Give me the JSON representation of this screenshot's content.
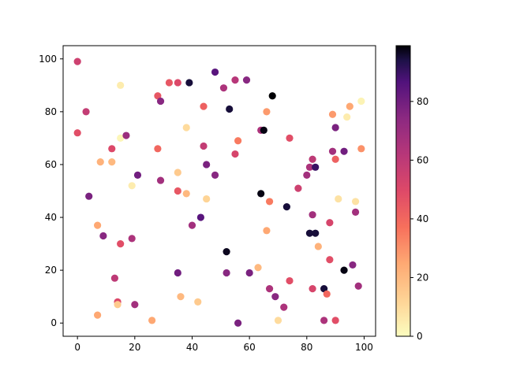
{
  "chart_data": {
    "type": "scatter",
    "title": "",
    "xlabel": "",
    "ylabel": "",
    "xlim": [
      -5,
      104
    ],
    "ylim": [
      -5,
      105
    ],
    "x_ticks": [
      0,
      20,
      40,
      60,
      80,
      100
    ],
    "y_ticks": [
      0,
      20,
      40,
      60,
      80,
      100
    ],
    "grid": false,
    "colormap": "magma_r",
    "colorbar": {
      "min": 0,
      "max": 99,
      "ticks": [
        0,
        20,
        40,
        60,
        80
      ]
    },
    "points": [
      {
        "x": 0,
        "y": 99,
        "c": 55
      },
      {
        "x": 0,
        "y": 72,
        "c": 48
      },
      {
        "x": 3,
        "y": 80,
        "c": 58
      },
      {
        "x": 4,
        "y": 48,
        "c": 78
      },
      {
        "x": 7,
        "y": 37,
        "c": 25
      },
      {
        "x": 7,
        "y": 3,
        "c": 25
      },
      {
        "x": 8,
        "y": 61,
        "c": 22
      },
      {
        "x": 9,
        "y": 33,
        "c": 75
      },
      {
        "x": 12,
        "y": 66,
        "c": 50
      },
      {
        "x": 12,
        "y": 61,
        "c": 20
      },
      {
        "x": 13,
        "y": 17,
        "c": 60
      },
      {
        "x": 14,
        "y": 8,
        "c": 50
      },
      {
        "x": 14,
        "y": 7,
        "c": 15
      },
      {
        "x": 15,
        "y": 90,
        "c": 5
      },
      {
        "x": 15,
        "y": 70,
        "c": 2
      },
      {
        "x": 15,
        "y": 30,
        "c": 48
      },
      {
        "x": 17,
        "y": 71,
        "c": 70
      },
      {
        "x": 19,
        "y": 52,
        "c": 5
      },
      {
        "x": 19,
        "y": 32,
        "c": 65
      },
      {
        "x": 20,
        "y": 7,
        "c": 68
      },
      {
        "x": 21,
        "y": 56,
        "c": 80
      },
      {
        "x": 26,
        "y": 1,
        "c": 25
      },
      {
        "x": 28,
        "y": 86,
        "c": 45
      },
      {
        "x": 28,
        "y": 66,
        "c": 40
      },
      {
        "x": 29,
        "y": 84,
        "c": 75
      },
      {
        "x": 29,
        "y": 54,
        "c": 68
      },
      {
        "x": 32,
        "y": 91,
        "c": 45
      },
      {
        "x": 35,
        "y": 91,
        "c": 50
      },
      {
        "x": 35,
        "y": 57,
        "c": 15
      },
      {
        "x": 35,
        "y": 50,
        "c": 45
      },
      {
        "x": 35,
        "y": 19,
        "c": 80
      },
      {
        "x": 36,
        "y": 10,
        "c": 20
      },
      {
        "x": 38,
        "y": 74,
        "c": 10
      },
      {
        "x": 38,
        "y": 49,
        "c": 20
      },
      {
        "x": 39,
        "y": 91,
        "c": 95
      },
      {
        "x": 40,
        "y": 37,
        "c": 68
      },
      {
        "x": 42,
        "y": 8,
        "c": 15
      },
      {
        "x": 43,
        "y": 40,
        "c": 85
      },
      {
        "x": 44,
        "y": 82,
        "c": 42
      },
      {
        "x": 44,
        "y": 67,
        "c": 58
      },
      {
        "x": 45,
        "y": 60,
        "c": 78
      },
      {
        "x": 45,
        "y": 47,
        "c": 12
      },
      {
        "x": 48,
        "y": 95,
        "c": 85
      },
      {
        "x": 48,
        "y": 56,
        "c": 75
      },
      {
        "x": 51,
        "y": 89,
        "c": 65
      },
      {
        "x": 52,
        "y": 27,
        "c": 97
      },
      {
        "x": 52,
        "y": 19,
        "c": 75
      },
      {
        "x": 53,
        "y": 81,
        "c": 95
      },
      {
        "x": 55,
        "y": 92,
        "c": 62
      },
      {
        "x": 55,
        "y": 64,
        "c": 52
      },
      {
        "x": 56,
        "y": 69,
        "c": 35
      },
      {
        "x": 56,
        "y": 0,
        "c": 78
      },
      {
        "x": 59,
        "y": 92,
        "c": 75
      },
      {
        "x": 60,
        "y": 19,
        "c": 78
      },
      {
        "x": 63,
        "y": 21,
        "c": 20
      },
      {
        "x": 64,
        "y": 73,
        "c": 65
      },
      {
        "x": 64,
        "y": 49,
        "c": 98
      },
      {
        "x": 65,
        "y": 73,
        "c": 98
      },
      {
        "x": 66,
        "y": 80,
        "c": 28
      },
      {
        "x": 66,
        "y": 35,
        "c": 25
      },
      {
        "x": 67,
        "y": 46,
        "c": 35
      },
      {
        "x": 67,
        "y": 13,
        "c": 65
      },
      {
        "x": 68,
        "y": 86,
        "c": 99
      },
      {
        "x": 69,
        "y": 10,
        "c": 75
      },
      {
        "x": 70,
        "y": 1,
        "c": 10
      },
      {
        "x": 72,
        "y": 6,
        "c": 65
      },
      {
        "x": 73,
        "y": 44,
        "c": 95
      },
      {
        "x": 74,
        "y": 70,
        "c": 48
      },
      {
        "x": 74,
        "y": 16,
        "c": 48
      },
      {
        "x": 77,
        "y": 51,
        "c": 55
      },
      {
        "x": 80,
        "y": 56,
        "c": 68
      },
      {
        "x": 81,
        "y": 59,
        "c": 65
      },
      {
        "x": 81,
        "y": 34,
        "c": 95
      },
      {
        "x": 82,
        "y": 62,
        "c": 60
      },
      {
        "x": 82,
        "y": 41,
        "c": 68
      },
      {
        "x": 82,
        "y": 13,
        "c": 52
      },
      {
        "x": 83,
        "y": 59,
        "c": 90
      },
      {
        "x": 83,
        "y": 34,
        "c": 95
      },
      {
        "x": 84,
        "y": 29,
        "c": 22
      },
      {
        "x": 86,
        "y": 13,
        "c": 95
      },
      {
        "x": 86,
        "y": 1,
        "c": 65
      },
      {
        "x": 87,
        "y": 11,
        "c": 40
      },
      {
        "x": 88,
        "y": 38,
        "c": 52
      },
      {
        "x": 88,
        "y": 24,
        "c": 48
      },
      {
        "x": 89,
        "y": 79,
        "c": 28
      },
      {
        "x": 89,
        "y": 65,
        "c": 68
      },
      {
        "x": 90,
        "y": 74,
        "c": 78
      },
      {
        "x": 90,
        "y": 62,
        "c": 42
      },
      {
        "x": 90,
        "y": 1,
        "c": 48
      },
      {
        "x": 91,
        "y": 47,
        "c": 8
      },
      {
        "x": 93,
        "y": 65,
        "c": 80
      },
      {
        "x": 93,
        "y": 20,
        "c": 98
      },
      {
        "x": 94,
        "y": 78,
        "c": 5
      },
      {
        "x": 95,
        "y": 82,
        "c": 25
      },
      {
        "x": 96,
        "y": 22,
        "c": 75
      },
      {
        "x": 97,
        "y": 46,
        "c": 8
      },
      {
        "x": 97,
        "y": 42,
        "c": 68
      },
      {
        "x": 98,
        "y": 14,
        "c": 68
      },
      {
        "x": 99,
        "y": 84,
        "c": 3
      },
      {
        "x": 99,
        "y": 66,
        "c": 30
      }
    ]
  }
}
